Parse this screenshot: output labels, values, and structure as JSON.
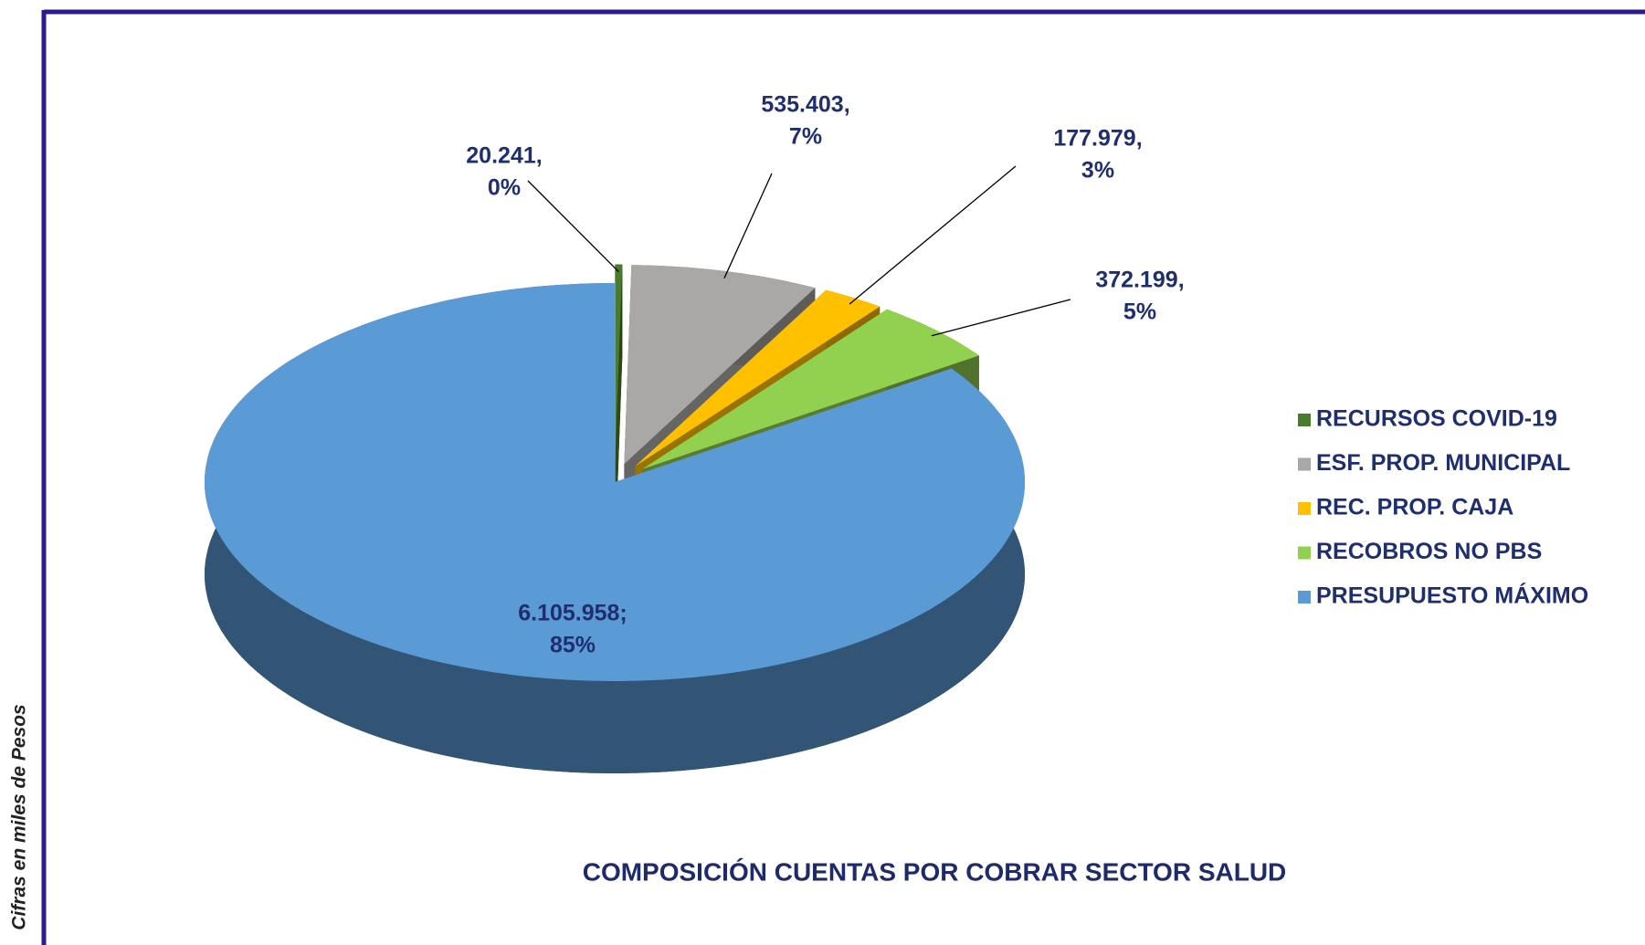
{
  "chart_data": {
    "type": "pie3d",
    "title": "COMPOSICIÓN CUENTAS POR COBRAR SECTOR SALUD",
    "note": "Cifras en miles de Pesos",
    "categories": [
      "RECURSOS COVID-19",
      "ESF. PROP. MUNICIPAL",
      "REC. PROP. CAJA",
      "RECOBROS NO PBS",
      "PRESUPUESTO MÁXIMO"
    ],
    "values": [
      20241,
      535403,
      177979,
      372199,
      6105958
    ],
    "value_labels": [
      "20.241,",
      "535.403,",
      "177.979,",
      "372.199,",
      "6.105.958;"
    ],
    "percent_labels": [
      "0%",
      "7%",
      "3%",
      "5%",
      "85%"
    ],
    "colors": [
      "#4a7a2b",
      "#a9a8a6",
      "#ffc000",
      "#92d050",
      "#5b9bd5"
    ],
    "legend": "right"
  }
}
